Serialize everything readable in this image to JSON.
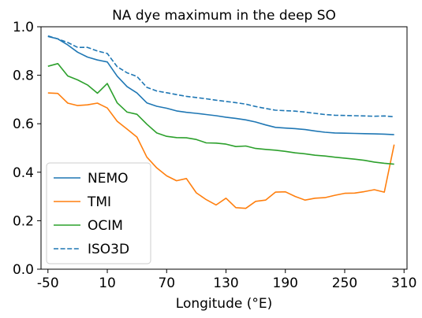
{
  "chart_data": {
    "type": "line",
    "title": "NA dye maximum in the deep SO",
    "xlabel": "Longitude (°E)",
    "ylabel": "",
    "xlim": [
      -57,
      313
    ],
    "ylim": [
      0.0,
      1.0
    ],
    "xticks": [
      -50,
      10,
      70,
      130,
      190,
      250,
      310
    ],
    "xtick_labels": [
      "-50",
      "10",
      "70",
      "130",
      "190",
      "250",
      "310"
    ],
    "yticks": [
      0.0,
      0.2,
      0.4,
      0.6,
      0.8,
      1.0
    ],
    "ytick_labels": [
      "0.0",
      "0.2",
      "0.4",
      "0.6",
      "0.8",
      "1.0"
    ],
    "grid": false,
    "legend_position": "lower-left",
    "x": [
      -50,
      -40,
      -30,
      -20,
      -10,
      0,
      10,
      20,
      30,
      40,
      50,
      60,
      70,
      80,
      90,
      100,
      110,
      120,
      130,
      140,
      150,
      160,
      170,
      180,
      190,
      200,
      210,
      220,
      230,
      240,
      250,
      260,
      270,
      280,
      290,
      300
    ],
    "series": [
      {
        "name": "NEMO",
        "color": "#1f77b4",
        "dash": "solid",
        "values": [
          0.96,
          0.95,
          0.925,
          0.895,
          0.875,
          0.863,
          0.855,
          0.796,
          0.753,
          0.727,
          0.686,
          0.672,
          0.664,
          0.653,
          0.647,
          0.643,
          0.638,
          0.633,
          0.627,
          0.622,
          0.616,
          0.607,
          0.595,
          0.585,
          0.582,
          0.58,
          0.576,
          0.57,
          0.565,
          0.562,
          0.561,
          0.56,
          0.559,
          0.558,
          0.557,
          0.555
        ]
      },
      {
        "name": "TMI",
        "color": "#ff7f0e",
        "dash": "solid",
        "values": [
          0.727,
          0.725,
          0.685,
          0.675,
          0.678,
          0.685,
          0.665,
          0.61,
          0.578,
          0.545,
          0.462,
          0.418,
          0.385,
          0.365,
          0.374,
          0.315,
          0.287,
          0.265,
          0.293,
          0.254,
          0.251,
          0.28,
          0.285,
          0.318,
          0.319,
          0.3,
          0.285,
          0.293,
          0.295,
          0.305,
          0.313,
          0.314,
          0.32,
          0.328,
          0.318,
          0.514
        ]
      },
      {
        "name": "OCIM",
        "color": "#2ca02c",
        "dash": "solid",
        "values": [
          0.837,
          0.848,
          0.797,
          0.781,
          0.76,
          0.726,
          0.766,
          0.686,
          0.648,
          0.639,
          0.598,
          0.562,
          0.548,
          0.543,
          0.542,
          0.535,
          0.521,
          0.52,
          0.516,
          0.506,
          0.508,
          0.498,
          0.494,
          0.491,
          0.486,
          0.48,
          0.476,
          0.47,
          0.467,
          0.462,
          0.458,
          0.454,
          0.449,
          0.442,
          0.437,
          0.433
        ]
      },
      {
        "name": "ISO3D",
        "color": "#1f77b4",
        "dash": "dashed",
        "values": [
          0.962,
          0.95,
          0.935,
          0.915,
          0.915,
          0.9,
          0.89,
          0.835,
          0.81,
          0.795,
          0.75,
          0.735,
          0.728,
          0.72,
          0.713,
          0.708,
          0.703,
          0.697,
          0.692,
          0.687,
          0.681,
          0.671,
          0.663,
          0.656,
          0.654,
          0.652,
          0.648,
          0.643,
          0.638,
          0.635,
          0.634,
          0.633,
          0.632,
          0.631,
          0.632,
          0.629
        ]
      }
    ]
  }
}
